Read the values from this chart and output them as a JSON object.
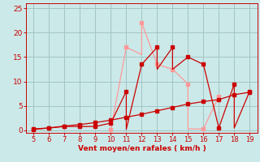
{
  "background_color": "#cbe9e9",
  "grid_color": "#a0c4c4",
  "xlabel": "Vent moyen/en rafales ( km/h )",
  "xlim": [
    4.5,
    19.5
  ],
  "ylim": [
    -0.5,
    26
  ],
  "xticks": [
    5,
    6,
    7,
    8,
    9,
    10,
    11,
    12,
    13,
    14,
    15,
    16,
    17,
    18,
    19
  ],
  "yticks": [
    0,
    5,
    10,
    15,
    20,
    25
  ],
  "line_dark_x": [
    5,
    6,
    7,
    8,
    9,
    10,
    11,
    11,
    12,
    13,
    13,
    14,
    14,
    15,
    16,
    17,
    18,
    18,
    19
  ],
  "line_dark_y": [
    0.3,
    0.5,
    0.8,
    0.8,
    0.8,
    1.5,
    8.0,
    0.2,
    13.5,
    17.0,
    12.5,
    17.0,
    12.5,
    15.0,
    13.5,
    0.5,
    9.5,
    0.5,
    8.0
  ],
  "line_dark_color": "#cc0000",
  "line_light_x": [
    10,
    11,
    12,
    12,
    13,
    14,
    15,
    15,
    16,
    17
  ],
  "line_light_y": [
    0.2,
    17.0,
    15.5,
    22.0,
    13.5,
    12.5,
    9.5,
    0.3,
    0.3,
    7.0
  ],
  "line_light_color": "#ff9999",
  "line_trend_x": [
    5,
    6,
    7,
    8,
    9,
    10,
    11,
    12,
    13,
    14,
    15,
    16,
    17,
    18,
    19
  ],
  "line_trend_y": [
    0.2,
    0.5,
    0.9,
    1.2,
    1.6,
    2.1,
    2.7,
    3.3,
    4.0,
    4.7,
    5.4,
    5.9,
    6.3,
    7.3,
    7.8
  ],
  "line_trend_color": "#cc0000",
  "marker_dark_x": [
    5,
    6,
    7,
    8,
    9,
    10,
    11,
    12,
    13,
    14,
    15,
    16,
    17,
    18,
    19
  ],
  "marker_dark_y": [
    0.3,
    0.5,
    0.8,
    0.8,
    0.8,
    1.5,
    8.0,
    13.5,
    17.0,
    17.0,
    15.0,
    13.5,
    0.5,
    9.5,
    8.0
  ],
  "marker_light_x": [
    10,
    11,
    12,
    13,
    14,
    15,
    16,
    17
  ],
  "marker_light_y": [
    0.2,
    17.0,
    22.0,
    13.5,
    12.5,
    9.5,
    0.3,
    7.0
  ],
  "tick_color": "#cc0000",
  "label_color": "#cc0000"
}
